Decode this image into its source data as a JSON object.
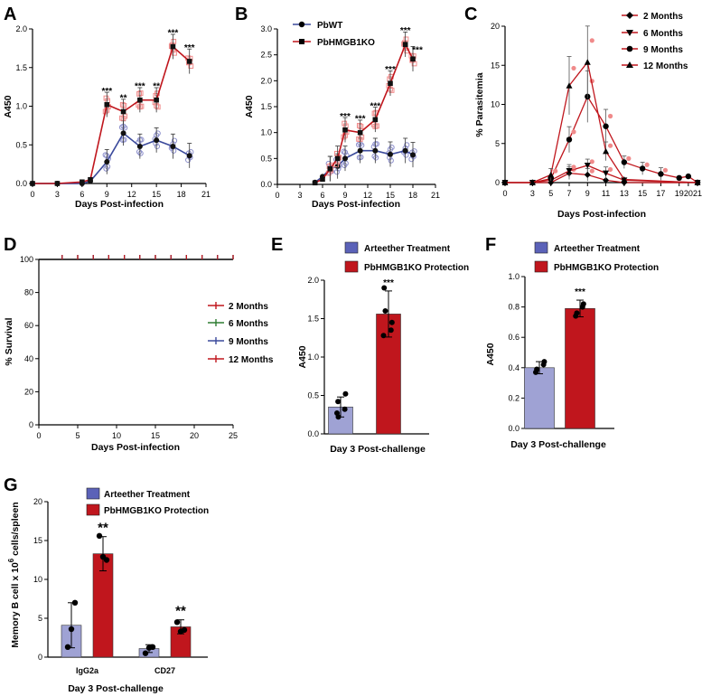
{
  "colors": {
    "blue": "#3b4a9c",
    "red": "#c0161d",
    "lightblue": "#8e91cc",
    "pink": "#f08a8a",
    "lightpurple": "#9fa2d4"
  },
  "panel_letters": {
    "a": "A",
    "b": "B",
    "c": "C",
    "d": "D",
    "e": "E",
    "f": "F",
    "g": "G"
  },
  "chart_data": [
    {
      "id": "A",
      "type": "line",
      "title": "",
      "xlabel": "Days Post-infection",
      "ylabel": "A450",
      "xlim": [
        0,
        21
      ],
      "ylim": [
        0,
        2.0
      ],
      "xticks": [
        0,
        3,
        6,
        9,
        12,
        15,
        18,
        21
      ],
      "yticks": [
        0.0,
        0.5,
        1.0,
        1.5,
        2.0
      ],
      "ytick_labels": [
        "0.0",
        "0.5",
        "1.0",
        "1.5",
        "2.0"
      ],
      "x": [
        0,
        3,
        6,
        7,
        9,
        11,
        13,
        15,
        17,
        19
      ],
      "series": [
        {
          "name": "PbWT",
          "color": "#3b4a9c",
          "values": [
            0,
            0,
            0,
            0.03,
            0.28,
            0.65,
            0.48,
            0.56,
            0.48,
            0.36
          ]
        },
        {
          "name": "PbHMGB1KO",
          "color": "#c0161d",
          "values": [
            0,
            0,
            0.02,
            0.05,
            1.02,
            0.93,
            1.08,
            1.08,
            1.77,
            1.58
          ]
        }
      ],
      "annotations": [
        {
          "x": 9,
          "label": "***"
        },
        {
          "x": 11,
          "label": "**"
        },
        {
          "x": 13,
          "label": "***"
        },
        {
          "x": 15,
          "label": "**"
        },
        {
          "x": 17,
          "label": "***"
        },
        {
          "x": 19,
          "label": "***"
        }
      ]
    },
    {
      "id": "B",
      "type": "line",
      "title": "",
      "xlabel": "Days Post-infection",
      "ylabel": "A450",
      "xlim": [
        0,
        21
      ],
      "ylim": [
        0,
        3.0
      ],
      "xticks": [
        0,
        3,
        6,
        9,
        12,
        15,
        18,
        21
      ],
      "yticks": [
        0.0,
        0.5,
        1.0,
        1.5,
        2.0,
        2.5,
        3.0
      ],
      "ytick_labels": [
        "0.0",
        "0.5",
        "1.0",
        "1.5",
        "2.0",
        "2.5",
        "3.0"
      ],
      "x": [
        5,
        6,
        7,
        8,
        9,
        11,
        13,
        15,
        17,
        18
      ],
      "series": [
        {
          "name": "PbWT",
          "color": "#3b4a9c",
          "values": [
            0.04,
            0.15,
            0.3,
            0.35,
            0.5,
            0.65,
            0.65,
            0.58,
            0.65,
            0.57
          ]
        },
        {
          "name": "PbHMGB1KO",
          "color": "#c0161d",
          "values": [
            0.03,
            0.1,
            0.3,
            0.5,
            1.05,
            1.0,
            1.25,
            1.95,
            2.7,
            2.42
          ]
        }
      ],
      "legend": [
        "PbWT",
        "PbHMGB1KO"
      ],
      "annotations": [
        {
          "x": 9,
          "label": "***"
        },
        {
          "x": 11,
          "label": "***"
        },
        {
          "x": 13,
          "label": "***"
        },
        {
          "x": 15,
          "label": "***"
        },
        {
          "x": 17,
          "label": "***"
        },
        {
          "x": 18,
          "label": "***"
        }
      ]
    },
    {
      "id": "C",
      "type": "line",
      "title": "",
      "xlabel": "Days Post-infection",
      "ylabel": "% Parasitemia",
      "xlim": [
        0,
        21
      ],
      "ylim": [
        0,
        20
      ],
      "xticks": [
        0,
        3,
        5,
        7,
        9,
        11,
        13,
        15,
        17,
        19,
        20,
        21
      ],
      "yticks": [
        0,
        5,
        10,
        15,
        20
      ],
      "ytick_labels": [
        "0",
        "5",
        "10",
        "15",
        "20"
      ],
      "series": [
        {
          "name": "2 Months",
          "marker": "diamond",
          "color": "#000000",
          "x": [
            0,
            3,
            5,
            7,
            9,
            11,
            13,
            21
          ],
          "values": [
            0,
            0,
            0,
            1.2,
            1.0,
            0.3,
            0,
            0
          ]
        },
        {
          "name": "6 Months",
          "marker": "triangle-down",
          "color": "#000000",
          "x": [
            0,
            3,
            5,
            7,
            9,
            11,
            13,
            21
          ],
          "values": [
            0,
            0,
            0.3,
            1.5,
            2.2,
            1.2,
            0.3,
            0
          ]
        },
        {
          "name": "9 Months",
          "marker": "circle",
          "color": "#000000",
          "x": [
            0,
            3,
            5,
            7,
            9,
            11,
            13,
            15,
            17,
            19,
            20,
            21
          ],
          "values": [
            0,
            0,
            0.5,
            5.5,
            11.0,
            7.2,
            2.6,
            1.8,
            1.1,
            0.6,
            0.8,
            0
          ]
        },
        {
          "name": "12 Months",
          "marker": "triangle-up",
          "color": "#000000",
          "x": [
            0,
            3,
            5,
            7,
            9,
            11,
            13,
            21
          ],
          "values": [
            0,
            0,
            1.0,
            12.4,
            15.4,
            4.0,
            0.4,
            0
          ]
        }
      ]
    },
    {
      "id": "D",
      "type": "line",
      "title": "",
      "xlabel": "Days Post-infection",
      "ylabel": "% Survival",
      "xlim": [
        0,
        25
      ],
      "ylim": [
        0,
        100
      ],
      "xticks": [
        0,
        5,
        10,
        15,
        20,
        25
      ],
      "yticks": [
        0,
        20,
        40,
        60,
        80,
        100
      ],
      "ytick_labels": [
        "0",
        "20",
        "40",
        "60",
        "80",
        "100"
      ],
      "x": [
        3,
        5,
        7,
        9,
        11,
        13,
        15,
        17,
        19,
        21,
        23,
        25
      ],
      "series": [
        {
          "name": "2 Months",
          "color": "#c0161d",
          "values": [
            100,
            100,
            100,
            100,
            100,
            100,
            100,
            100,
            100,
            100,
            100,
            100
          ]
        },
        {
          "name": "6 Months",
          "color": "#2e7d32",
          "values": [
            100,
            100,
            100,
            100,
            100,
            100,
            100,
            100,
            100,
            100,
            100,
            100
          ]
        },
        {
          "name": "9 Months",
          "color": "#3b4a9c",
          "values": [
            100,
            100,
            100,
            100,
            100,
            100,
            100,
            100,
            100,
            100,
            100,
            100
          ]
        },
        {
          "name": "12 Months",
          "color": "#c0161d",
          "values": [
            100,
            100,
            100,
            100,
            100,
            100,
            100,
            100,
            100,
            100,
            100,
            100
          ]
        }
      ]
    },
    {
      "id": "E",
      "type": "bar",
      "title": "",
      "xlabel": "Day 3 Post-challenge",
      "ylabel": "A450",
      "ylim": [
        0,
        2.0
      ],
      "yticks": [
        0.0,
        0.5,
        1.0,
        1.5,
        2.0
      ],
      "ytick_labels": [
        "0.0",
        "0.5",
        "1.0",
        "1.5",
        "2.0"
      ],
      "categories": [
        "Arteether Treatment",
        "PbHMGB1KO Protection"
      ],
      "values": [
        0.35,
        1.56
      ],
      "errors": [
        0.13,
        0.3
      ],
      "points": [
        [
          0.27,
          0.32,
          0.42,
          0.52,
          0.22
        ],
        [
          1.6,
          1.45,
          1.9,
          1.35,
          1.28
        ]
      ],
      "annotations": [
        {
          "category": 1,
          "label": "***"
        }
      ]
    },
    {
      "id": "F",
      "type": "bar",
      "title": "",
      "xlabel": "Day 3 Post-challenge",
      "ylabel": "A450",
      "ylim": [
        0,
        1.0
      ],
      "yticks": [
        0.0,
        0.2,
        0.4,
        0.6,
        0.8,
        1.0
      ],
      "ytick_labels": [
        "0.0",
        "0.2",
        "0.4",
        "0.6",
        "0.8",
        "1.0"
      ],
      "categories": [
        "Arteether Treatment",
        "PbHMGB1KO Protection"
      ],
      "values": [
        0.4,
        0.79
      ],
      "errors": [
        0.04,
        0.055
      ],
      "points": [
        [
          0.37,
          0.42,
          0.39,
          0.44
        ],
        [
          0.76,
          0.82,
          0.74,
          0.8
        ]
      ],
      "annotations": [
        {
          "category": 1,
          "label": "***"
        }
      ]
    },
    {
      "id": "G",
      "type": "bar",
      "title": "",
      "xlabel": "Day 3 Post-challenge",
      "ylabel": "Memory B cell x 10",
      "ylabel_sup": "6",
      "ylabel_tail": " cells/spleen",
      "ylim": [
        0,
        20
      ],
      "yticks": [
        0,
        5,
        10,
        15,
        20
      ],
      "ytick_labels": [
        "0",
        "5",
        "10",
        "15",
        "20"
      ],
      "categories": [
        "IgG2a",
        "CD27"
      ],
      "series": [
        {
          "name": "Arteether Treatment",
          "values": [
            4.1,
            1.1
          ],
          "errors": [
            2.9,
            0.5
          ],
          "points": [
            [
              1.3,
              3.6,
              7.0
            ],
            [
              0.5,
              1.2,
              1.3
            ]
          ]
        },
        {
          "name": "PbHMGB1KO Protection",
          "values": [
            13.3,
            3.9
          ],
          "errors": [
            2.2,
            0.9
          ],
          "points": [
            [
              15.6,
              12.9,
              12.5
            ],
            [
              4.5,
              3.3,
              3.5
            ]
          ]
        }
      ],
      "annotations": [
        {
          "category": 0,
          "label": "**"
        },
        {
          "category": 1,
          "label": "**"
        }
      ]
    }
  ]
}
